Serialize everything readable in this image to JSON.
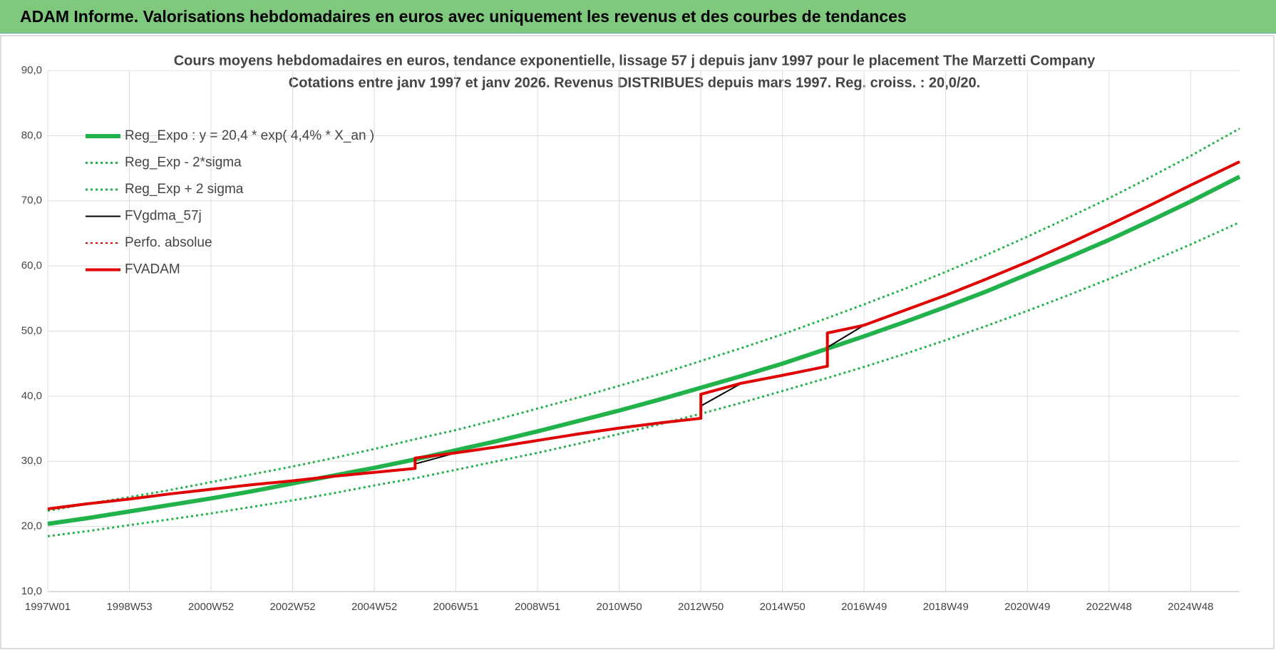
{
  "header": {
    "title": "ADAM Informe. Valorisations hebdomadaires en euros avec uniquement les revenus et des courbes de tendances"
  },
  "chart_data": {
    "type": "line",
    "title": "Cours moyens hebdomadaires en euros, tendance exponentielle, lissage 57 j depuis janv 1997 pour le placement The Marzetti Company",
    "subtitle": "Cotations entre janv 1997 et janv 2026. Revenus DISTRIBUES depuis mars 1997. Reg. croiss. : 20,0/20.",
    "x": [
      1997,
      1998,
      1999,
      2000,
      2001,
      2002,
      2003,
      2004,
      2005,
      2006,
      2006,
      2007,
      2008,
      2009,
      2010,
      2011,
      2012,
      2013,
      2013,
      2014,
      2015,
      2016.1,
      2016.1,
      2017,
      2018,
      2019,
      2020,
      2021,
      2022,
      2023,
      2024,
      2025,
      2026.2
    ],
    "xlim": [
      1997,
      2026.2
    ],
    "xticks": [
      {
        "value": 1997,
        "label": "1997W01"
      },
      {
        "value": 1999,
        "label": "1998W53"
      },
      {
        "value": 2001,
        "label": "2000W52"
      },
      {
        "value": 2003,
        "label": "2002W52"
      },
      {
        "value": 2005,
        "label": "2004W52"
      },
      {
        "value": 2007,
        "label": "2006W51"
      },
      {
        "value": 2009,
        "label": "2008W51"
      },
      {
        "value": 2011,
        "label": "2010W50"
      },
      {
        "value": 2013,
        "label": "2012W50"
      },
      {
        "value": 2015,
        "label": "2014W50"
      },
      {
        "value": 2017,
        "label": "2016W49"
      },
      {
        "value": 2019,
        "label": "2018W49"
      },
      {
        "value": 2021,
        "label": "2020W49"
      },
      {
        "value": 2023,
        "label": "2022W48"
      },
      {
        "value": 2025,
        "label": "2024W48"
      }
    ],
    "ylim": [
      10,
      90
    ],
    "yticks": [
      {
        "value": 10,
        "label": "10,0"
      },
      {
        "value": 20,
        "label": "20,0"
      },
      {
        "value": 30,
        "label": "30,0"
      },
      {
        "value": 40,
        "label": "40,0"
      },
      {
        "value": 50,
        "label": "50,0"
      },
      {
        "value": 60,
        "label": "60,0"
      },
      {
        "value": 70,
        "label": "70,0"
      },
      {
        "value": 80,
        "label": "80,0"
      },
      {
        "value": 90,
        "label": "90,0"
      }
    ],
    "grid": true,
    "legend": "top-left",
    "series": [
      {
        "name": "Reg_Expo : y = 20,4 * exp( 4,4% *  X_an )",
        "color": "#21b24b",
        "line_style": "solid",
        "line_width": 6,
        "values": [
          20.4,
          21.3,
          22.3,
          23.3,
          24.3,
          25.4,
          26.6,
          27.8,
          29.0,
          30.3,
          30.3,
          31.7,
          33.1,
          34.6,
          36.2,
          37.8,
          39.5,
          41.3,
          41.3,
          43.1,
          45.0,
          47.3,
          47.3,
          49.2,
          51.4,
          53.7,
          56.1,
          58.7,
          61.3,
          64.0,
          66.9,
          69.9,
          73.7
        ]
      },
      {
        "name": "Reg_Exp - 2*sigma",
        "color": "#21b24b",
        "line_style": "dotted",
        "line_width": 3,
        "values": [
          18.5,
          19.3,
          20.2,
          21.1,
          22.0,
          23.0,
          24.0,
          25.1,
          26.3,
          27.4,
          27.4,
          28.7,
          30.0,
          31.3,
          32.7,
          34.2,
          35.7,
          37.3,
          37.3,
          39.0,
          40.8,
          42.8,
          42.8,
          44.5,
          46.5,
          48.6,
          50.8,
          53.1,
          55.5,
          58.0,
          60.6,
          63.3,
          66.7
        ]
      },
      {
        "name": "Reg_Exp + 2 sigma",
        "color": "#21b24b",
        "line_style": "dotted",
        "line_width": 3,
        "values": [
          22.4,
          23.5,
          24.5,
          25.6,
          26.8,
          28.0,
          29.2,
          30.5,
          31.9,
          33.4,
          33.4,
          34.8,
          36.4,
          38.1,
          39.8,
          41.6,
          43.4,
          45.4,
          45.4,
          47.4,
          49.5,
          52.0,
          52.0,
          54.1,
          56.5,
          59.1,
          61.7,
          64.5,
          67.4,
          70.4,
          73.6,
          76.9,
          81.1
        ]
      },
      {
        "name": "FVgdma_57j",
        "color": "#000000",
        "line_style": "solid",
        "line_width": 2,
        "values": [
          22.7,
          23.5,
          24.2,
          25.0,
          25.7,
          26.4,
          27.0,
          27.7,
          28.3,
          28.9,
          29.6,
          31.3,
          32.2,
          33.2,
          34.2,
          35.1,
          35.9,
          36.6,
          38.5,
          42.0,
          43.2,
          44.6,
          47.5,
          50.9,
          53.2,
          55.5,
          58.0,
          60.6,
          63.4,
          66.3,
          69.3,
          72.4,
          76.0
        ]
      },
      {
        "name": "Perfo. absolue",
        "color": "#e00000",
        "line_style": "dotted",
        "line_width": 2,
        "values": [
          22.7,
          23.5,
          24.2,
          25.0,
          25.7,
          26.4,
          27.0,
          27.7,
          28.3,
          28.9,
          30.5,
          31.3,
          32.2,
          33.2,
          34.2,
          35.1,
          35.9,
          36.6,
          40.3,
          42.0,
          43.2,
          44.6,
          49.7,
          50.9,
          53.2,
          55.5,
          58.0,
          60.6,
          63.4,
          66.3,
          69.3,
          72.4,
          76.0
        ]
      },
      {
        "name": "FVADAM",
        "color": "#e00000",
        "line_style": "solid",
        "line_width": 4,
        "values": [
          22.7,
          23.5,
          24.2,
          25.0,
          25.7,
          26.4,
          27.0,
          27.7,
          28.3,
          28.9,
          30.5,
          31.3,
          32.2,
          33.2,
          34.2,
          35.1,
          35.9,
          36.6,
          40.3,
          42.0,
          43.2,
          44.6,
          49.7,
          50.9,
          53.2,
          55.5,
          58.0,
          60.6,
          63.4,
          66.3,
          69.3,
          72.4,
          76.0
        ]
      }
    ]
  }
}
